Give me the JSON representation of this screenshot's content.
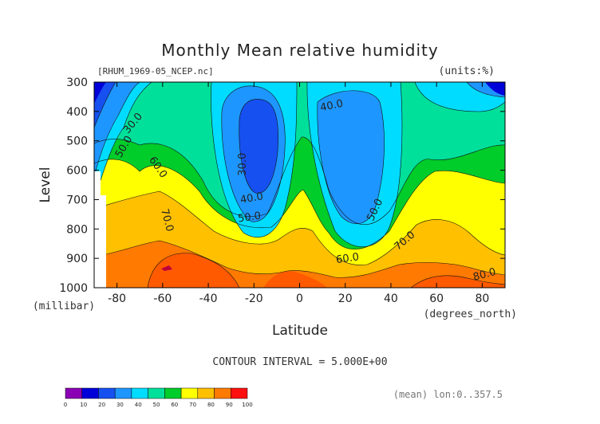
{
  "chart_data": {
    "type": "heatmap",
    "title": "Monthly Mean relative humidity",
    "subtitle_left": "[RHUM_1969-05_NCEP.nc]",
    "subtitle_right": "(units:%)",
    "xlabel": "Latitude",
    "xunit_label": "(degrees_north)",
    "ylabel": "Level",
    "yunit_label": "(millibar)",
    "xlim": [
      -90,
      90
    ],
    "ylim": [
      1000,
      300
    ],
    "xticks": [
      -80,
      -60,
      -40,
      -20,
      0,
      20,
      40,
      60,
      80
    ],
    "xtick_labels": [
      "-80",
      "-60",
      "-40",
      "-20",
      "0",
      "20",
      "40",
      "60",
      "80"
    ],
    "yticks": [
      300,
      400,
      500,
      600,
      700,
      800,
      900,
      1000
    ],
    "ytick_labels": [
      "300",
      "400",
      "500",
      "600",
      "700",
      "800",
      "900",
      "1000"
    ],
    "contour_interval_text": "CONTOUR INTERVAL = 5.000E+00",
    "mean_note": "(mean) lon:0..357.5",
    "contour_labels": [
      {
        "text": "30.0",
        "lat": -73,
        "lev": 440,
        "rot": -50
      },
      {
        "text": "50.0",
        "lat": -77,
        "lev": 520,
        "rot": -60
      },
      {
        "text": "60.0",
        "lat": -62,
        "lev": 590,
        "rot": 55
      },
      {
        "text": "70.0",
        "lat": -58,
        "lev": 770,
        "rot": 75
      },
      {
        "text": "30.0",
        "lat": -25,
        "lev": 580,
        "rot": -90
      },
      {
        "text": "40.0",
        "lat": -21,
        "lev": 695,
        "rot": -10
      },
      {
        "text": "50.0",
        "lat": -22,
        "lev": 760,
        "rot": -8
      },
      {
        "text": "40.0",
        "lat": 14,
        "lev": 380,
        "rot": -12
      },
      {
        "text": "50.0",
        "lat": 33,
        "lev": 735,
        "rot": -65
      },
      {
        "text": "60.0",
        "lat": 21,
        "lev": 900,
        "rot": -8
      },
      {
        "text": "70.0",
        "lat": 46,
        "lev": 840,
        "rot": -40
      },
      {
        "text": "80.0",
        "lat": 81,
        "lev": 955,
        "rot": -15
      }
    ],
    "colorbar": {
      "levels": [
        "0",
        "10",
        "20",
        "30",
        "40",
        "50",
        "60",
        "70",
        "80",
        "90",
        "100"
      ],
      "colors": [
        "#8b00b5",
        "#0000d8",
        "#1650f0",
        "#1e96ff",
        "#00dcff",
        "#00e09a",
        "#00cc2a",
        "#ffff00",
        "#ffc000",
        "#ff7a00",
        "#ff1010"
      ]
    },
    "grid": false
  }
}
